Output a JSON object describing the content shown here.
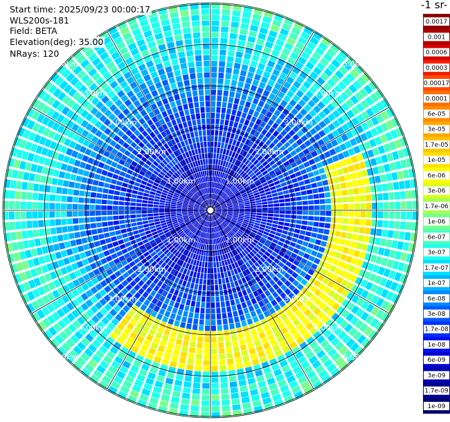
{
  "header": {
    "start_time": "Start time: 2025/09/23 00:00:17",
    "instrument": "WLS200s-181",
    "field": "Field: BETA",
    "elevation": "Elevation(deg): 35.00",
    "nrays": "NRays: 120"
  },
  "colorbar": {
    "unit_label": "-1 sr-",
    "labels": [
      "0.0017",
      "0.001",
      "0.0006",
      "0.0003",
      "0.00017",
      "0.0001",
      "6e-05",
      "3e-05",
      "1.7e-05",
      "1e-05",
      "6e-06",
      "3e-06",
      "1.7e-06",
      "1e-06",
      "6e-07",
      "3e-07",
      "1.7e-07",
      "1e-07",
      "6e-08",
      "3e-08",
      "1.7e-08",
      "1e-08",
      "6e-09",
      "3e-09",
      "1.7e-09",
      "1e-09"
    ],
    "colors": [
      "#8b0000",
      "#b00000",
      "#d40000",
      "#f01e00",
      "#ff4a00",
      "#ff6e00",
      "#ff8c00",
      "#ffa800",
      "#ffc400",
      "#ffe000",
      "#ffff00",
      "#d8ff20",
      "#a6ff5a",
      "#78ff8a",
      "#48ffc0",
      "#1effee",
      "#00e0ff",
      "#00b4ff",
      "#0088ff",
      "#005aff",
      "#0030ff",
      "#0010ee",
      "#0000d0",
      "#0000b0",
      "#000090",
      "#000070"
    ]
  },
  "chart_data": {
    "type": "heatmap",
    "title": "",
    "projection": "polar (PPI)",
    "nrays": 120,
    "range_rings_km": [
      1,
      2,
      3,
      4,
      5
    ],
    "ring_labels": [
      "1.00km",
      "2.00km",
      "3.00km",
      "4.00km",
      "5.00km"
    ],
    "max_range_km": 5.7,
    "field": "BETA",
    "elevation_deg": 35.0,
    "range_profile": [
      {
        "range_km": 0.0,
        "log10_beta": -8.3
      },
      {
        "range_km": 1.5,
        "log10_beta": -7.9
      },
      {
        "range_km": 2.5,
        "log10_beta": -7.6
      },
      {
        "range_km": 3.5,
        "log10_beta": -7.2
      },
      {
        "range_km": 4.5,
        "log10_beta": -6.6
      },
      {
        "range_km": 5.7,
        "log10_beta": -6.3
      }
    ],
    "enhanced_band": {
      "azimuth_from_deg": 70,
      "azimuth_to_deg": 220,
      "range_from_km": 3.3,
      "range_to_km": 4.4,
      "log10_beta": -5.3
    },
    "colorbar_range": {
      "min": 1e-09,
      "max": 0.0017,
      "scale": "log"
    }
  }
}
